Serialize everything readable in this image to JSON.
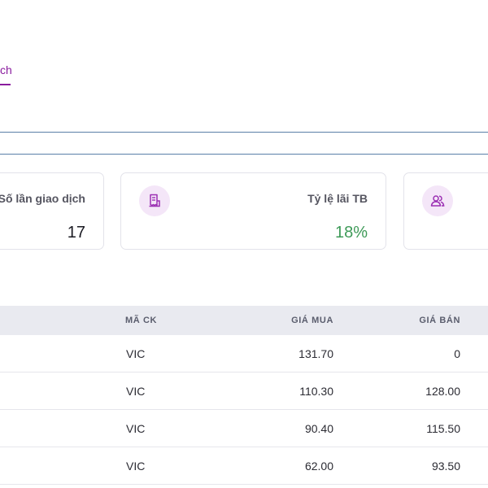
{
  "tabs": [
    {
      "label": "ch"
    }
  ],
  "stats": [
    {
      "label": "Số lần giao dịch",
      "value": "17",
      "icon": "exchange-icon"
    },
    {
      "label": "Tỷ lệ lãi TB",
      "value": "18%",
      "icon": "receipt-icon",
      "value_color": "#3e9a58"
    },
    {
      "label": "",
      "value": "",
      "icon": "users-icon"
    }
  ],
  "table": {
    "columns": [
      "MÃ CK",
      "GIÁ MUA",
      "GIÁ BÁN"
    ],
    "rows": [
      {
        "ma_ck": "VIC",
        "gia_mua": "131.70",
        "gia_ban": "0"
      },
      {
        "ma_ck": "VIC",
        "gia_mua": "110.30",
        "gia_ban": "128.00"
      },
      {
        "ma_ck": "VIC",
        "gia_mua": "90.40",
        "gia_ban": "115.50"
      },
      {
        "ma_ck": "VIC",
        "gia_mua": "62.00",
        "gia_ban": "93.50"
      }
    ]
  },
  "colors": {
    "accent": "#8a1c9e",
    "positive": "#3e9a58",
    "header_bg": "#e9eaf0"
  }
}
